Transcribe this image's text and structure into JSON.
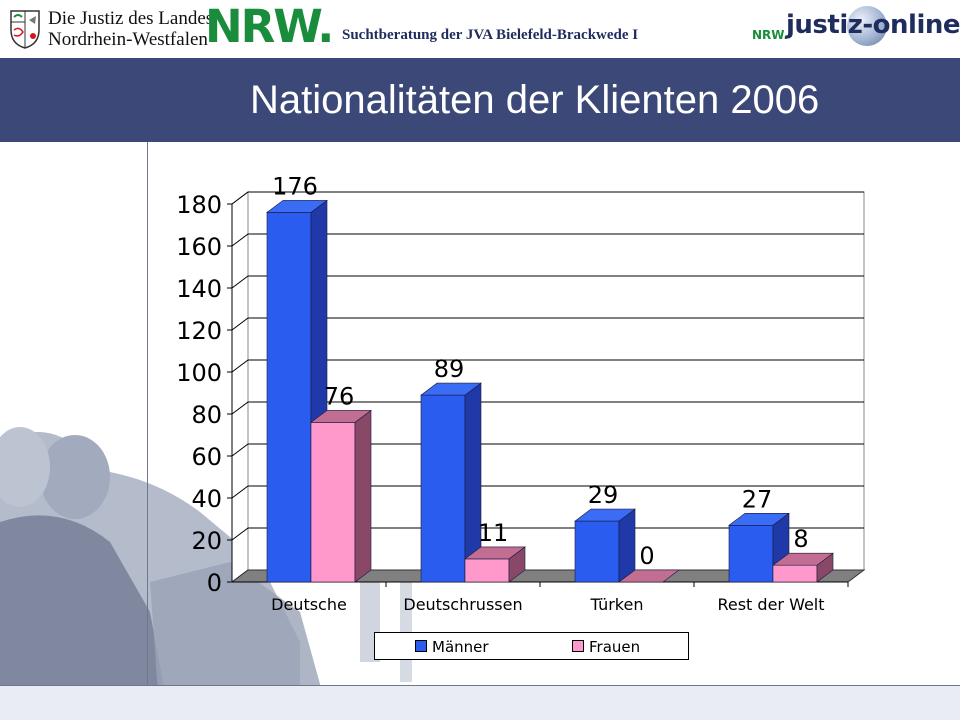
{
  "header": {
    "justiz_line1": "Die Justiz des Landes",
    "justiz_line2": "Nordrhein-Westfalen",
    "nrw_logo": "NRW.",
    "subtitle": "Suchtberatung der  JVA Bielefeld-Brackwede I",
    "online_logo_small": "NRW.",
    "online_logo_big": "justiz-online"
  },
  "title": "Nationalitäten der Klienten 2006",
  "colors": {
    "titlebar": "#3c4878",
    "maenner": "#2b5cf0",
    "frauen": "#ff99cc"
  },
  "chart_data": {
    "type": "bar",
    "categories": [
      "Deutsche",
      "Deutschrussen",
      "Türken",
      "Rest der Welt"
    ],
    "series": [
      {
        "name": "Männer",
        "values": [
          176,
          89,
          29,
          27
        ]
      },
      {
        "name": "Frauen",
        "values": [
          76,
          11,
          0,
          8
        ]
      }
    ],
    "ylim": [
      0,
      180
    ],
    "yticks": [
      0,
      20,
      40,
      60,
      80,
      100,
      120,
      140,
      160,
      180
    ],
    "style": "3d-column",
    "grid": true,
    "legend": "bottom"
  }
}
